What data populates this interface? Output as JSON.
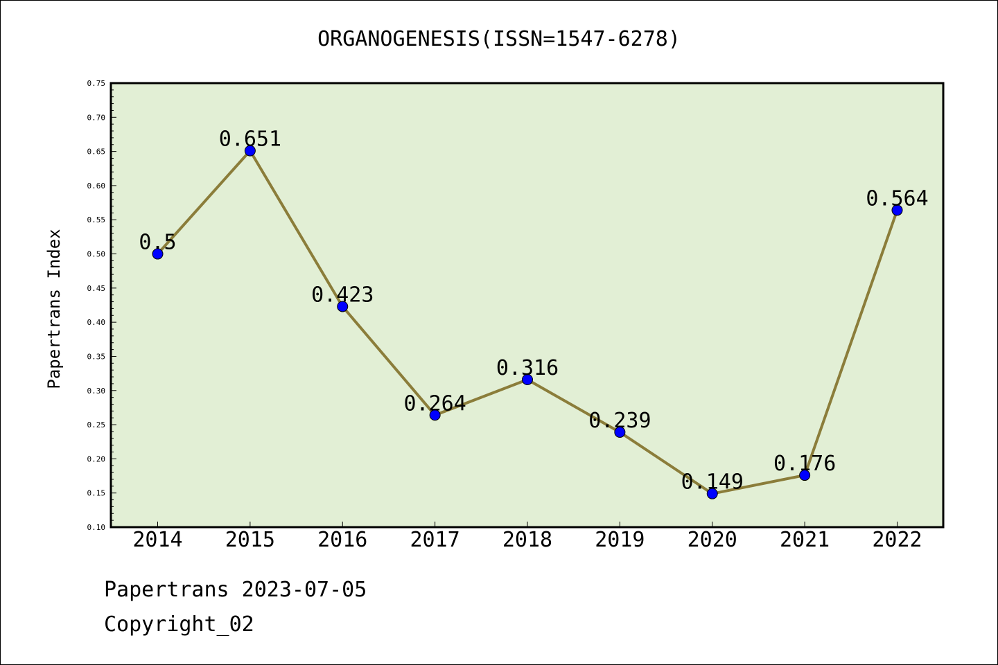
{
  "chart_data": {
    "type": "line",
    "title": "ORGANOGENESIS(ISSN=1547-6278)",
    "ylabel": "Papertrans Index",
    "xlabel": "",
    "categories": [
      "2014",
      "2015",
      "2016",
      "2017",
      "2018",
      "2019",
      "2020",
      "2021",
      "2022"
    ],
    "values": [
      0.5,
      0.651,
      0.423,
      0.264,
      0.316,
      0.239,
      0.149,
      0.176,
      0.564
    ],
    "data_labels": [
      "0.5",
      "0.651",
      "0.423",
      "0.264",
      "0.316",
      "0.239",
      "0.149",
      "0.176",
      "0.564"
    ],
    "ylim": [
      0.1,
      0.75
    ],
    "yticks": [
      "0.10",
      "0.15",
      "0.20",
      "0.25",
      "0.30",
      "0.35",
      "0.40",
      "0.45",
      "0.50",
      "0.55",
      "0.60",
      "0.65",
      "0.70",
      "0.75"
    ],
    "grid": false,
    "legend": "none",
    "colors": {
      "plot_background": "#e2efd5",
      "line": "#8b7d3a",
      "marker": "#0000ff"
    }
  },
  "footer": {
    "line1": "Papertrans 2023-07-05",
    "line2": "Copyright_02"
  }
}
